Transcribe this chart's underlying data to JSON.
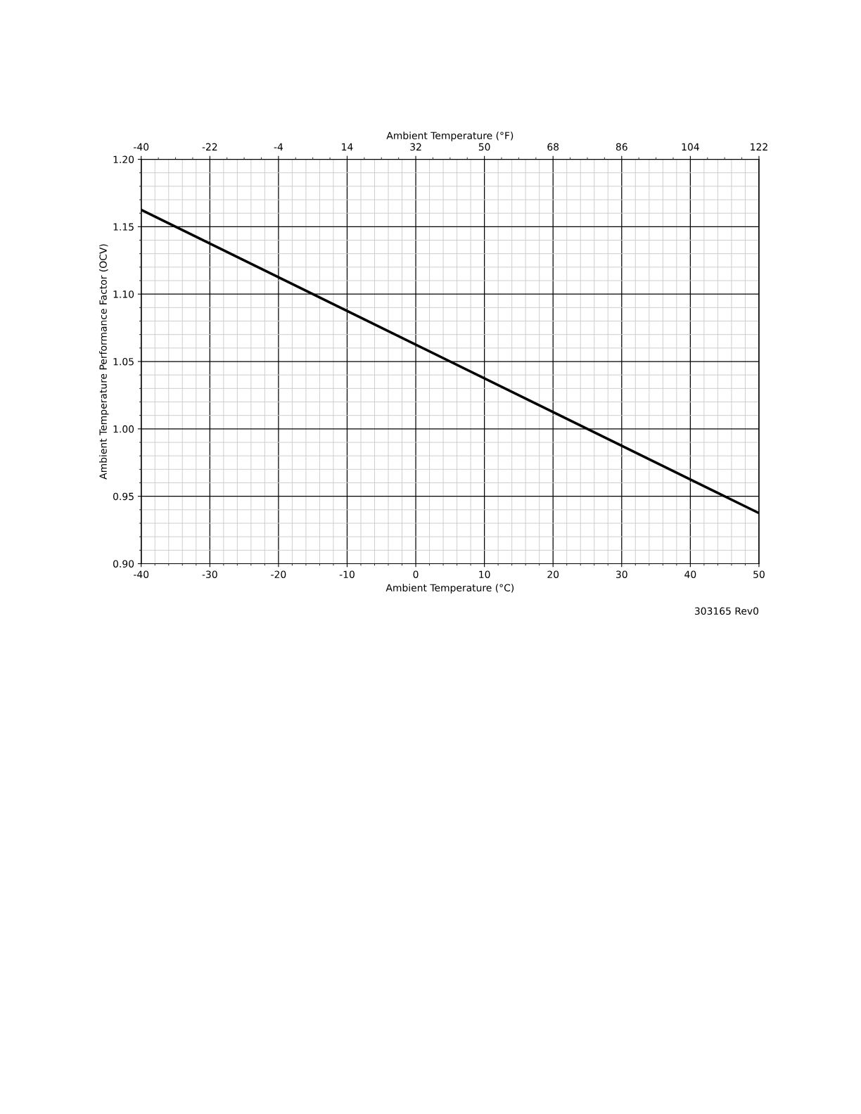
{
  "chart_data": {
    "type": "line",
    "xlabel": "Ambient Temperature (°C)",
    "x2label": "Ambient Temperature (°F)",
    "ylabel": "Ambient Temperature Performance Factor (OCV)",
    "x": [
      -40,
      50
    ],
    "series": [
      {
        "color": "#000000",
        "values": [
          1.1625,
          0.9375
        ]
      }
    ],
    "xlim": [
      -40,
      50
    ],
    "xticks": [
      -40,
      -30,
      -20,
      -10,
      0,
      10,
      20,
      30,
      40,
      50
    ],
    "x2lim": [
      -40,
      122
    ],
    "x2ticks": [
      -40,
      -22,
      -4,
      14,
      32,
      50,
      68,
      86,
      104,
      122
    ],
    "ylim": [
      0.9,
      1.2
    ],
    "yticks": [
      {
        "value": 0.9,
        "label": "0.90"
      },
      {
        "value": 0.95,
        "label": "0.95"
      },
      {
        "value": 1.0,
        "label": "1.00"
      },
      {
        "value": 1.05,
        "label": "1.05"
      },
      {
        "value": 1.1,
        "label": "1.10"
      },
      {
        "value": 1.15,
        "label": "1.15"
      },
      {
        "value": 1.2,
        "label": "1.20"
      }
    ],
    "grid": true,
    "marker": "none",
    "line_style": "solid",
    "annotations": [
      "303165 Rev0"
    ]
  }
}
